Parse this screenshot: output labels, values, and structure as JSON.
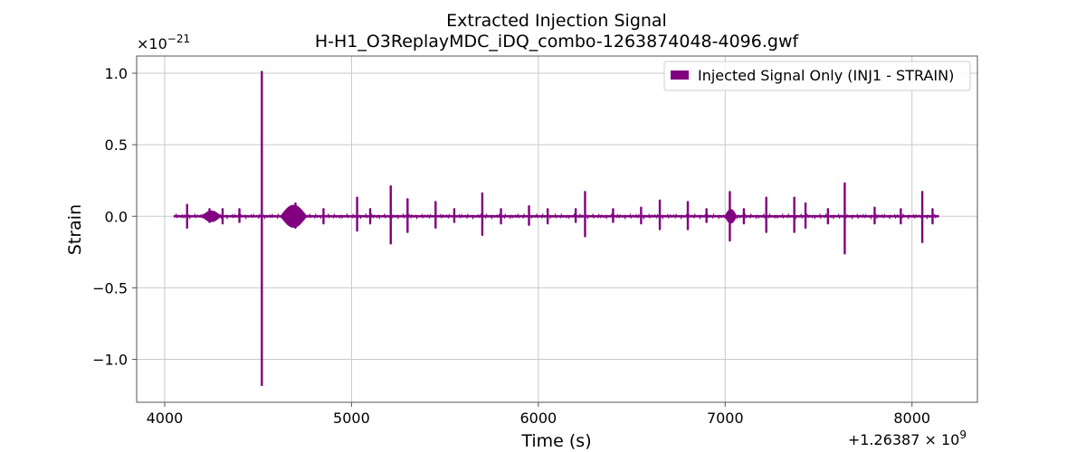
{
  "chart_data": {
    "type": "line",
    "title": "Extracted Injection Signal",
    "subtitle": "H-H1_O3ReplayMDC_iDQ_combo-1263874048-4096.gwf",
    "xlabel": "Time (s)",
    "ylabel": "Strain",
    "x_offset_label": "+1.26387 × 10",
    "x_offset_exp": "9",
    "y_scale_label": "×10",
    "y_scale_exp": "−21",
    "xlim": [
      3850,
      8350
    ],
    "ylim": [
      -1.3,
      1.12
    ],
    "x_ticks": [
      4000,
      5000,
      6000,
      7000,
      8000
    ],
    "x_tick_labels": [
      "4000",
      "5000",
      "6000",
      "7000",
      "8000"
    ],
    "y_ticks": [
      1.0,
      0.5,
      0.0,
      -0.5,
      -1.0
    ],
    "y_tick_labels": [
      "1.0",
      "0.5",
      "0.0",
      "−0.5",
      "−1.0"
    ],
    "grid": true,
    "legend_position": "upper right",
    "series": [
      {
        "name": "Injected Signal Only (INJ1 - STRAIN)",
        "color": "#800080",
        "x_range": [
          4048,
          8144
        ],
        "baseline_amplitude": 0.008,
        "spikes": [
          {
            "x": 4120,
            "top": 0.08,
            "bottom": -0.08
          },
          {
            "x": 4240,
            "top": 0.05,
            "bottom": -0.04
          },
          {
            "x": 4310,
            "top": 0.05,
            "bottom": -0.05
          },
          {
            "x": 4400,
            "top": 0.05,
            "bottom": -0.04
          },
          {
            "x": 4520,
            "top": 1.01,
            "bottom": -1.18
          },
          {
            "x": 4700,
            "top": 0.09,
            "bottom": -0.08
          },
          {
            "x": 4850,
            "top": 0.05,
            "bottom": -0.05
          },
          {
            "x": 5030,
            "top": 0.13,
            "bottom": -0.1
          },
          {
            "x": 5100,
            "top": 0.05,
            "bottom": -0.05
          },
          {
            "x": 5210,
            "top": 0.21,
            "bottom": -0.19
          },
          {
            "x": 5300,
            "top": 0.12,
            "bottom": -0.11
          },
          {
            "x": 5450,
            "top": 0.1,
            "bottom": -0.08
          },
          {
            "x": 5550,
            "top": 0.05,
            "bottom": -0.04
          },
          {
            "x": 5700,
            "top": 0.16,
            "bottom": -0.13
          },
          {
            "x": 5800,
            "top": 0.05,
            "bottom": -0.05
          },
          {
            "x": 5950,
            "top": 0.07,
            "bottom": -0.06
          },
          {
            "x": 6050,
            "top": 0.05,
            "bottom": -0.05
          },
          {
            "x": 6200,
            "top": 0.05,
            "bottom": -0.04
          },
          {
            "x": 6250,
            "top": 0.17,
            "bottom": -0.14
          },
          {
            "x": 6400,
            "top": 0.05,
            "bottom": -0.04
          },
          {
            "x": 6550,
            "top": 0.06,
            "bottom": -0.05
          },
          {
            "x": 6650,
            "top": 0.11,
            "bottom": -0.09
          },
          {
            "x": 6800,
            "top": 0.1,
            "bottom": -0.09
          },
          {
            "x": 6900,
            "top": 0.05,
            "bottom": -0.04
          },
          {
            "x": 7025,
            "top": 0.17,
            "bottom": -0.17
          },
          {
            "x": 7100,
            "top": 0.05,
            "bottom": -0.05
          },
          {
            "x": 7220,
            "top": 0.13,
            "bottom": -0.11
          },
          {
            "x": 7370,
            "top": 0.13,
            "bottom": -0.11
          },
          {
            "x": 7430,
            "top": 0.09,
            "bottom": -0.08
          },
          {
            "x": 7550,
            "top": 0.05,
            "bottom": -0.05
          },
          {
            "x": 7640,
            "top": 0.23,
            "bottom": -0.26
          },
          {
            "x": 7800,
            "top": 0.06,
            "bottom": -0.05
          },
          {
            "x": 7940,
            "top": 0.05,
            "bottom": -0.05
          },
          {
            "x": 8055,
            "top": 0.17,
            "bottom": -0.18
          },
          {
            "x": 8110,
            "top": 0.05,
            "bottom": -0.05
          }
        ],
        "bursts": [
          {
            "x_start": 4200,
            "x_end": 4300,
            "amplitude": 0.04
          },
          {
            "x_start": 4620,
            "x_end": 4760,
            "amplitude": 0.08
          },
          {
            "x_start": 7000,
            "x_end": 7060,
            "amplitude": 0.05
          }
        ]
      }
    ]
  }
}
